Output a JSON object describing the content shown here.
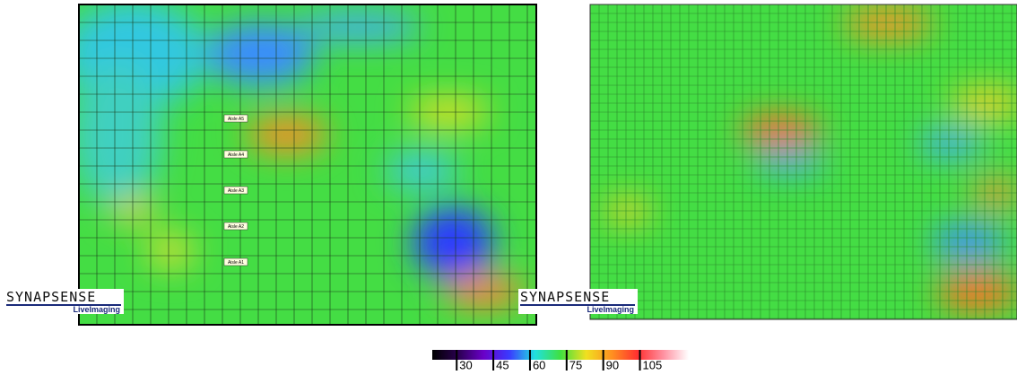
{
  "panels": [
    {
      "aisle_labels": [
        "Aisle A5",
        "Aisle A4",
        "Aisle A3",
        "Aisle A2",
        "Aisle A1"
      ],
      "logo": {
        "brand": "SYNAPSENSE",
        "product": "LiveImaging"
      }
    },
    {
      "logo": {
        "brand": "SYNAPSENSE",
        "product": "LiveImaging"
      }
    }
  ],
  "color_scale": {
    "range": [
      20,
      125
    ],
    "ticks": [
      30,
      45,
      60,
      75,
      90,
      105
    ],
    "colors": [
      "#000000",
      "#2a0050",
      "#6a00c8",
      "#3a3aff",
      "#20e0e0",
      "#40e040",
      "#f0e020",
      "#ff9020",
      "#ff3030",
      "#ff90a0",
      "#ffffff"
    ]
  }
}
